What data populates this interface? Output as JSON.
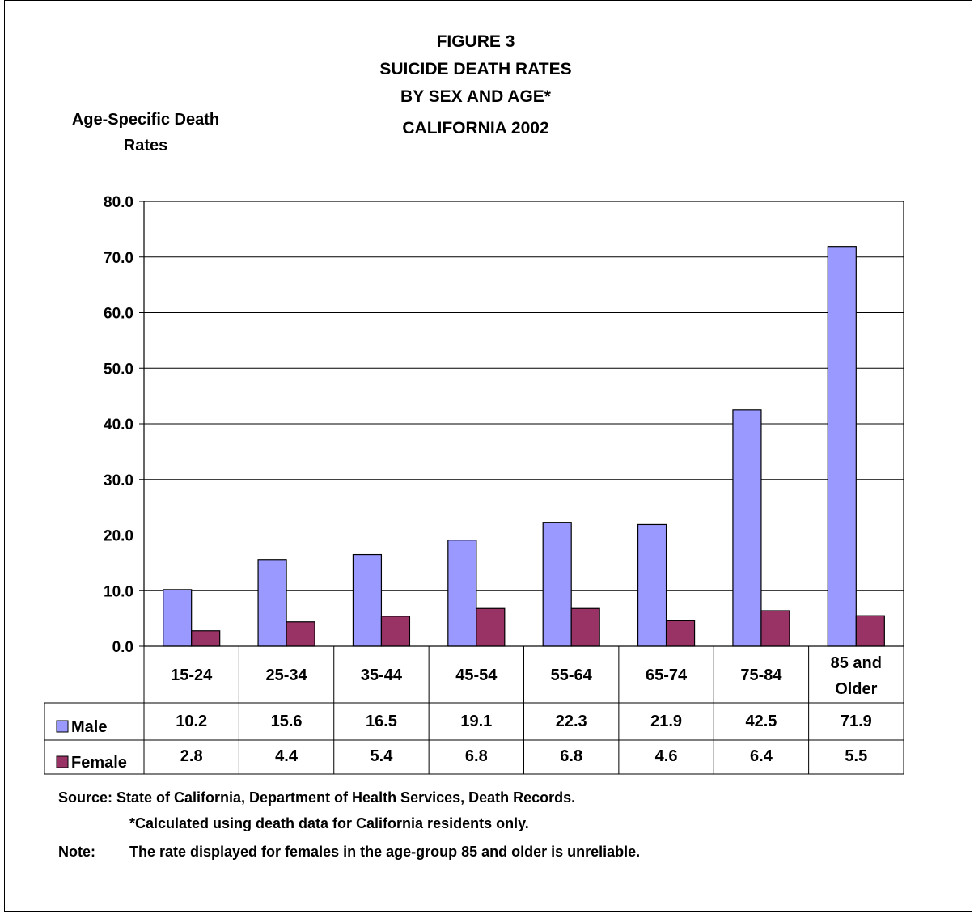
{
  "chart_data": {
    "type": "bar",
    "title_lines": [
      "FIGURE 3",
      "SUICIDE DEATH RATES",
      "BY SEX AND AGE*",
      "CALIFORNIA 2002"
    ],
    "ylabel_lines": [
      "Age-Specific Death",
      "Rates"
    ],
    "categories": [
      [
        "15-24"
      ],
      [
        "25-34"
      ],
      [
        "35-44"
      ],
      [
        "45-54"
      ],
      [
        "55-64"
      ],
      [
        "65-74"
      ],
      [
        "75-84"
      ],
      [
        "85 and",
        "Older"
      ]
    ],
    "series": [
      {
        "name": "Male",
        "color": "#9999ff",
        "values": [
          10.2,
          15.6,
          16.5,
          19.1,
          22.3,
          21.9,
          42.5,
          71.9
        ],
        "value_labels": [
          "10.2",
          "15.6",
          "16.5",
          "19.1",
          "22.3",
          "21.9",
          "42.5",
          "71.9"
        ]
      },
      {
        "name": "Female",
        "color": "#993366",
        "values": [
          2.8,
          4.4,
          5.4,
          6.8,
          6.8,
          4.6,
          6.4,
          5.5
        ],
        "value_labels": [
          "2.8",
          "4.4",
          "5.4",
          "6.8",
          "6.8",
          "4.6",
          "6.4",
          "5.5"
        ]
      }
    ],
    "ylim": [
      0,
      80
    ],
    "yticks": [
      "0.0",
      "10.0",
      "20.0",
      "30.0",
      "40.0",
      "50.0",
      "60.0",
      "70.0",
      "80.0"
    ],
    "grid": true,
    "legend": "data-table"
  },
  "footnotes": {
    "source": "Source: State of California, Department of Health Services, Death Records.",
    "calc_note": "*Calculated using death data for California residents only.",
    "note_label": "Note:",
    "note_text": "The rate displayed for females in the age-group 85 and older is unreliable."
  }
}
